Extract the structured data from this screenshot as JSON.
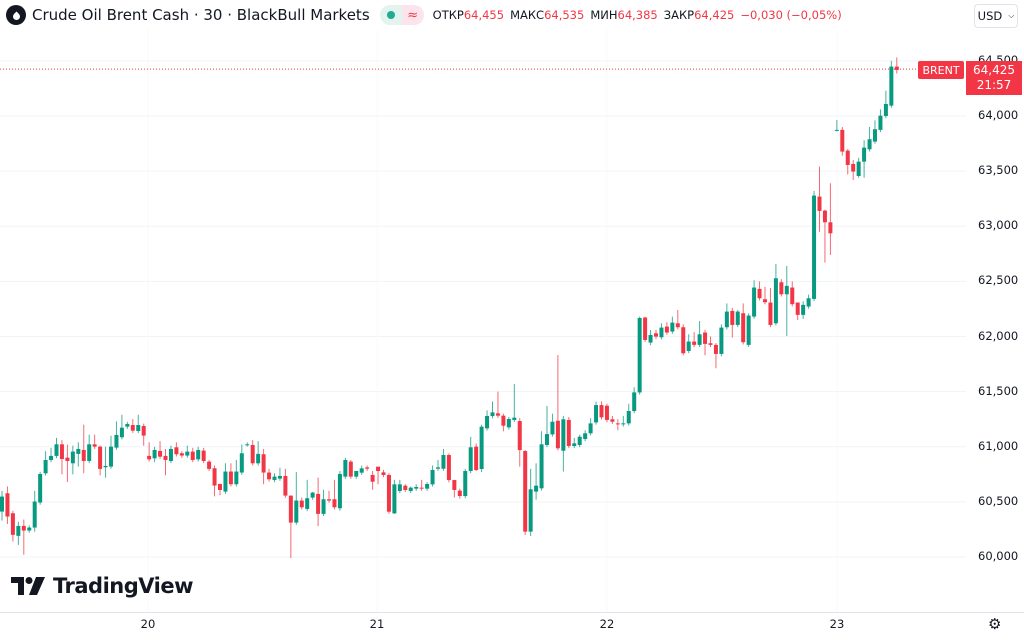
{
  "header": {
    "title": "Crude Oil Brent Cash · 30 · BlackBull Markets",
    "status_icon": "market-open-dot",
    "delay_icon": "≈",
    "ohlc": [
      {
        "label": "ОТКР",
        "value": "64,455"
      },
      {
        "label": "МАКС",
        "value": "64,535"
      },
      {
        "label": "МИН",
        "value": "64,385"
      },
      {
        "label": "ЗАКР",
        "value": "64,425"
      }
    ],
    "change": "−0,030 (−0,05%)"
  },
  "currency": "USD",
  "price_tag": {
    "symbol": "BRENT",
    "price": "64,425",
    "countdown": "21:57"
  },
  "price_axis": [
    "64,500",
    "64,000",
    "63,500",
    "63,000",
    "62,500",
    "62,000",
    "61,500",
    "61,000",
    "60,500",
    "60,000"
  ],
  "time_axis": [
    "20",
    "21",
    "22",
    "23"
  ],
  "logo": "TradingView",
  "colors": {
    "up": "#089981",
    "down": "#f23645",
    "grid": "#f0f3fa"
  },
  "chart_data": {
    "type": "candlestick",
    "interval": "30",
    "last_price": 64425,
    "ylim": [
      59850,
      64650
    ],
    "yticks": [
      64500,
      64000,
      63500,
      63000,
      62500,
      62000,
      61500,
      61000,
      60500,
      60000
    ],
    "candles_format": "[open, close, high?, low?]",
    "candles": [
      [
        60412,
        60548,
        60600,
        60330
      ],
      [
        60578,
        60367,
        60640,
        60300
      ],
      [
        60397,
        60201,
        60420,
        60140
      ],
      [
        60192,
        60282,
        60320,
        60110
      ],
      [
        60282,
        60240,
        60340,
        60020
      ],
      [
        60240,
        60267
      ],
      [
        60267,
        60503,
        60600,
        60230
      ],
      [
        60494,
        60753
      ],
      [
        60759,
        60880,
        60960
      ],
      [
        60880,
        60917,
        60990
      ],
      [
        60917,
        61022,
        61080
      ],
      [
        61022,
        60889,
        61060,
        60750
      ],
      [
        60901,
        60871,
        61020,
        60680
      ],
      [
        60850,
        60956,
        61010,
        60750
      ],
      [
        60935,
        60980,
        61040,
        60820
      ],
      [
        60971,
        60871,
        61200,
        60760
      ],
      [
        60871,
        61022,
        61110
      ],
      [
        61022,
        61001,
        61110
      ],
      [
        61001,
        60799,
        61010,
        60740
      ],
      [
        60814,
        60826,
        61001,
        60720
      ],
      [
        60820,
        61001,
        61100
      ],
      [
        60992,
        61107,
        61230
      ],
      [
        61086,
        61173,
        61290
      ],
      [
        61182,
        61206
      ],
      [
        61197,
        61146,
        61250
      ],
      [
        61143,
        61197,
        61290
      ],
      [
        61188,
        61101,
        61210,
        61010
      ],
      [
        60917,
        60886,
        61040
      ],
      [
        60895,
        60971,
        61000,
        60860
      ],
      [
        60962,
        60910,
        61050
      ],
      [
        60917,
        60880,
        60980,
        60740
      ],
      [
        60871,
        60980,
        61010
      ],
      [
        60995,
        60932,
        61040
      ],
      [
        60941,
        60920,
        60960
      ],
      [
        60920,
        60956,
        61010
      ],
      [
        60956,
        60880,
        60990
      ],
      [
        60886,
        60971,
        61000
      ],
      [
        60965,
        60871,
        60990
      ],
      [
        60865,
        60799,
        60880
      ],
      [
        60805,
        60648,
        60830,
        60550
      ],
      [
        60663,
        60608,
        60640,
        60560
      ],
      [
        60593,
        60775,
        60850
      ],
      [
        60775,
        60660,
        60850
      ],
      [
        60660,
        60775,
        60880
      ],
      [
        60766,
        60941,
        61020
      ],
      [
        61022,
        61022,
        61040
      ],
      [
        61016,
        60850,
        61060
      ],
      [
        60850,
        60935,
        61050
      ],
      [
        60932,
        60766,
        60980,
        60660
      ],
      [
        60766,
        60705,
        60800
      ],
      [
        60699,
        60729,
        60760
      ],
      [
        60711,
        60735,
        60810
      ],
      [
        60735,
        60557,
        60800
      ],
      [
        60557,
        60312,
        60540,
        59990
      ],
      [
        60312,
        60512,
        60770
      ],
      [
        60512,
        60451,
        60540
      ],
      [
        60436,
        60533,
        60700
      ],
      [
        60539,
        60584,
        60590
      ],
      [
        60572,
        60391,
        60720,
        60280
      ],
      [
        60391,
        60524,
        60610
      ],
      [
        60524,
        60512,
        60600
      ],
      [
        60524,
        60451,
        60700
      ],
      [
        60442,
        60753,
        60780,
        60420
      ],
      [
        60729,
        60880,
        60900
      ],
      [
        60865,
        60729,
        60880
      ],
      [
        60729,
        60780,
        60690
      ],
      [
        60765,
        60804,
        60830
      ],
      [
        60813,
        60801,
        60830
      ],
      [
        60744,
        60683,
        60780,
        60610
      ],
      [
        60819,
        60780,
        60800,
        60660
      ],
      [
        60768,
        60744,
        60790
      ],
      [
        60744,
        60411,
        60760
      ],
      [
        60396,
        60659,
        60700,
        60390
      ],
      [
        60599,
        60659,
        60700
      ],
      [
        60647,
        60608,
        60660,
        60590
      ],
      [
        60599,
        60629,
        60640
      ],
      [
        60620,
        60635,
        60660
      ],
      [
        60629,
        60620,
        60700
      ],
      [
        60620,
        60662,
        60680,
        60600
      ],
      [
        60659,
        60789,
        60830
      ],
      [
        60801,
        60813,
        60880
      ],
      [
        60801,
        60925,
        60980
      ],
      [
        60925,
        60698,
        60940
      ],
      [
        60698,
        60608,
        60700,
        60540
      ],
      [
        60602,
        60553,
        60620,
        60530
      ],
      [
        60553,
        60780,
        60800
      ],
      [
        60780,
        60995,
        61090
      ],
      [
        61001,
        60789,
        61030,
        60780
      ],
      [
        60798,
        61182,
        61200,
        60770
      ],
      [
        61167,
        61279,
        61330
      ],
      [
        61279,
        61312,
        61410
      ],
      [
        61303,
        61282,
        61500
      ],
      [
        61282,
        61191,
        61300,
        61140
      ],
      [
        61176,
        61252,
        61270
      ],
      [
        61243,
        61264,
        61569
      ],
      [
        61233,
        60970,
        61260,
        60819
      ],
      [
        60961,
        60230,
        60970,
        60200
      ],
      [
        60230,
        60614,
        60800,
        60190
      ],
      [
        60593,
        60647,
        60850,
        60520
      ],
      [
        60623,
        61022,
        61140
      ],
      [
        61016,
        61115,
        61370
      ],
      [
        61112,
        61227,
        61300
      ],
      [
        61236,
        60986,
        61832
      ],
      [
        60964,
        61249,
        61280,
        60775
      ],
      [
        61243,
        61007,
        61270
      ],
      [
        61007,
        61031,
        61080
      ],
      [
        61016,
        61091,
        61110
      ],
      [
        61070,
        61122,
        61150
      ],
      [
        61122,
        61212,
        61260
      ],
      [
        61221,
        61378,
        61410
      ],
      [
        61378,
        61267,
        61410
      ],
      [
        61372,
        61243,
        61390
      ],
      [
        61249,
        61227,
        61280
      ],
      [
        61212,
        61203,
        61250,
        61150
      ],
      [
        61203,
        61212,
        61280
      ],
      [
        61212,
        61324,
        61390
      ],
      [
        61324,
        61493,
        61540
      ],
      [
        61493,
        62168,
        62180
      ],
      [
        62172,
        61969,
        62180
      ],
      [
        61945,
        62014,
        62060,
        61920
      ],
      [
        62029,
        61999,
        62060
      ],
      [
        61993,
        62081,
        62120
      ],
      [
        62090,
        62036,
        62130
      ],
      [
        62045,
        62126,
        62180
      ],
      [
        62120,
        62084,
        62240
      ],
      [
        62084,
        61848,
        62110,
        61830
      ],
      [
        61869,
        61954,
        62020
      ],
      [
        61954,
        61924,
        62040
      ],
      [
        61924,
        62020,
        62140
      ],
      [
        62036,
        61933,
        62060,
        61830
      ],
      [
        61939,
        61924,
        62000
      ],
      [
        61924,
        61842,
        61940,
        61712
      ],
      [
        61842,
        62081,
        62110,
        61820
      ],
      [
        62084,
        62226,
        62300
      ],
      [
        62232,
        62105,
        62260,
        61990
      ],
      [
        62105,
        62226,
        62240
      ],
      [
        62211,
        61948,
        62300
      ],
      [
        61924,
        62190,
        62210
      ],
      [
        62181,
        62444,
        62510
      ],
      [
        62432,
        62347,
        62500
      ],
      [
        62338,
        62311,
        62450
      ],
      [
        62308,
        62105,
        62440
      ],
      [
        62120,
        62528,
        62658
      ],
      [
        62492,
        62383,
        62520
      ],
      [
        62383,
        62459,
        62640,
        62004
      ],
      [
        62444,
        62293,
        62500
      ],
      [
        62308,
        62196,
        62310,
        62150
      ],
      [
        62196,
        62287,
        62320,
        62160
      ],
      [
        62272,
        62347,
        62380
      ],
      [
        62341,
        63278,
        63320
      ],
      [
        63269,
        63139,
        63541,
        62950
      ],
      [
        63142,
        63036,
        63150,
        62670
      ],
      [
        63036,
        62936,
        63390,
        62740
      ],
      [
        63865,
        63874,
        63964,
        63860
      ],
      [
        63874,
        63677,
        63900,
        63640
      ],
      [
        63686,
        63556,
        63700,
        63470
      ],
      [
        63565,
        63496,
        63600,
        63420
      ],
      [
        63456,
        63586,
        63620,
        63440
      ],
      [
        63586,
        63713,
        63780,
        63440
      ],
      [
        63698,
        63789,
        63900
      ],
      [
        63768,
        63880,
        63960
      ],
      [
        63874,
        64003,
        64060
      ],
      [
        64000,
        64109,
        64230
      ],
      [
        64094,
        64448,
        64500
      ],
      [
        64448,
        64418,
        64532,
        64385
      ]
    ]
  }
}
